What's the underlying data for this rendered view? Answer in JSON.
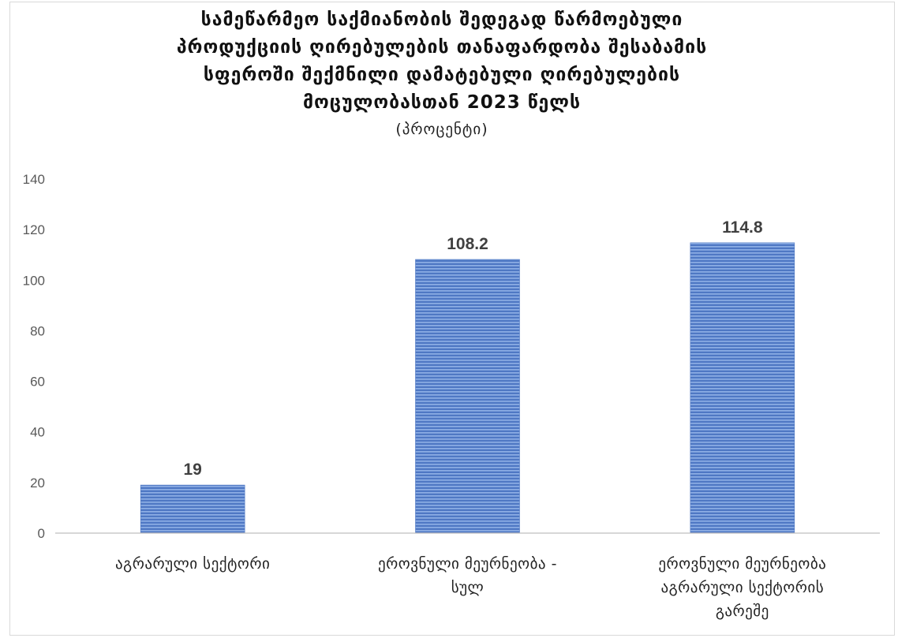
{
  "chart_data": {
    "type": "bar",
    "title_lines": [
      "სამეწარმეო საქმიანობის შედეგად წარმოებული",
      "პროდუქციის ღირებულების თანაფარდობა შესაბამის",
      "სფეროში შექმნილი დამატებული ღირებულების",
      "მოცულობასთან 2023 წელს"
    ],
    "subtitle": "(პროცენტი)",
    "categories": [
      [
        "აგრარული სექტორი"
      ],
      [
        "ეროვნული მეურნეობა -",
        "სულ"
      ],
      [
        "ეროვნული მეურნეობა",
        "აგრარული სექტორის",
        "გარეშე"
      ]
    ],
    "values": [
      19,
      108.2,
      114.8
    ],
    "value_labels": [
      "19",
      "108.2",
      "114.8"
    ],
    "ylim": [
      0,
      140
    ],
    "yticks": [
      "0",
      "20",
      "40",
      "60",
      "80",
      "100",
      "120",
      "140"
    ],
    "grid": false,
    "legend": "none",
    "bar_color": "#4f78c4",
    "bar_stripe_color": "#8fb0e6",
    "axis_color": "#bfbfbf",
    "tick_label_color": "#595959",
    "value_label_color": "#404040"
  }
}
